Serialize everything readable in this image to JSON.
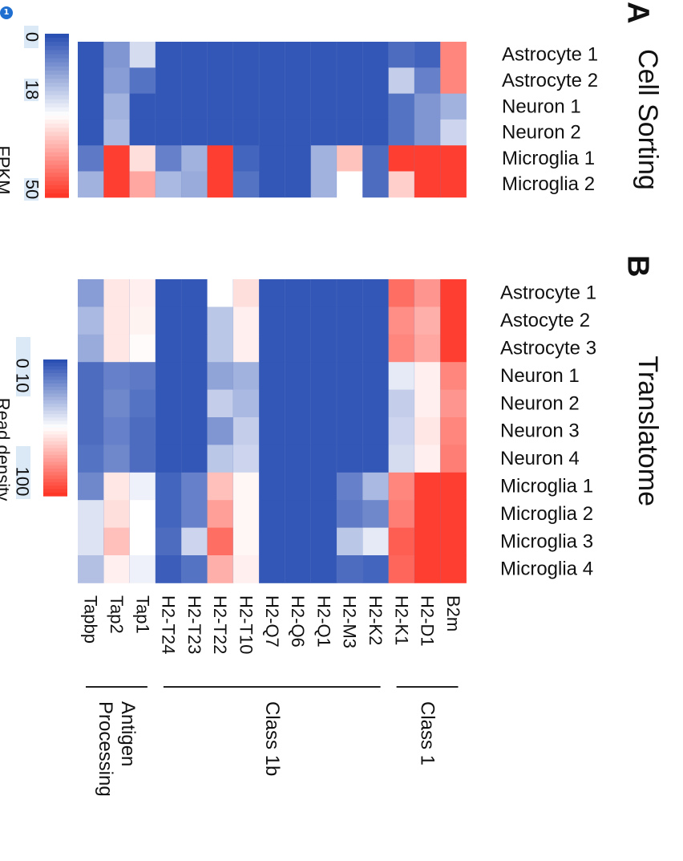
{
  "badge": "1",
  "colors": {
    "low": "#2b50b4",
    "mid": "#ffffff",
    "high": "#fe3627"
  },
  "genes": [
    "Tapbp",
    "Tap2",
    "Tap1",
    "H2-T24",
    "H2-T23",
    "H2-T22",
    "H2-T10",
    "H2-Q7",
    "H2-Q6",
    "H2-Q1",
    "H2-M3",
    "H2-K2",
    "H2-K1",
    "H2-D1",
    "B2m"
  ],
  "gene_groups": [
    {
      "label": "Antigen Processing",
      "lines": [
        "Antigen",
        "Processing"
      ]
    },
    {
      "label": "Class 1b",
      "lines": [
        "Class 1b"
      ]
    },
    {
      "label": "Class 1",
      "lines": [
        "Class 1"
      ]
    }
  ],
  "chart_data": [
    {
      "type": "heatmap",
      "panel": "A",
      "title": "Cell Sorting",
      "colorbar": {
        "label": "FPKM",
        "ticks": [
          "0",
          "18",
          "50"
        ]
      },
      "rows": [
        "Astrocyte 1",
        "Astrocyte 2",
        "Neuron 1",
        "Neuron 2",
        "Microglia 1",
        "Microglia 2"
      ],
      "columns": [
        "Tapbp",
        "Tap2",
        "Tap1",
        "H2-T24",
        "H2-T23",
        "H2-T22",
        "H2-T10",
        "H2-Q7",
        "H2-Q6",
        "H2-Q1",
        "H2-M3",
        "H2-K2",
        "H2-K1",
        "H2-D1",
        "B2m"
      ],
      "values": [
        [
          0.02,
          0.2,
          0.4,
          0.02,
          0.02,
          0.02,
          0.02,
          0.02,
          0.02,
          0.02,
          0.02,
          0.02,
          0.08,
          0.05,
          0.8
        ],
        [
          0.02,
          0.22,
          0.1,
          0.02,
          0.02,
          0.02,
          0.02,
          0.02,
          0.02,
          0.02,
          0.02,
          0.02,
          0.36,
          0.14,
          0.8
        ],
        [
          0.02,
          0.28,
          0.02,
          0.02,
          0.02,
          0.02,
          0.02,
          0.02,
          0.02,
          0.02,
          0.02,
          0.02,
          0.1,
          0.2,
          0.28
        ],
        [
          0.02,
          0.3,
          0.02,
          0.02,
          0.02,
          0.02,
          0.02,
          0.02,
          0.02,
          0.02,
          0.02,
          0.02,
          0.1,
          0.2,
          0.38
        ],
        [
          0.12,
          0.98,
          0.58,
          0.14,
          0.28,
          0.98,
          0.06,
          0.02,
          0.02,
          0.28,
          0.65,
          0.08,
          0.98,
          0.98,
          0.98
        ],
        [
          0.28,
          0.98,
          0.72,
          0.3,
          0.26,
          0.98,
          0.1,
          0.02,
          0.02,
          0.28,
          0.5,
          0.08,
          0.62,
          0.98,
          0.98
        ]
      ]
    },
    {
      "type": "heatmap",
      "panel": "B",
      "title": "Translatome",
      "colorbar": {
        "label": "Read density",
        "ticks": [
          "0",
          "10",
          "100"
        ]
      },
      "rows": [
        "Astrocyte 1",
        "Astocyte 2",
        "Astrocyte 3",
        "Neuron 1",
        "Neuron 2",
        "Neuron 3",
        "Neuron 4",
        "Microglia 1",
        "Microglia 2",
        "Microglia 3",
        "Microglia 4"
      ],
      "columns": [
        "Tapbp",
        "Tap2",
        "Tap1",
        "H2-T24",
        "H2-T23",
        "H2-T22",
        "H2-T10",
        "H2-Q7",
        "H2-Q6",
        "H2-Q1",
        "H2-M3",
        "H2-K2",
        "H2-K1",
        "H2-D1",
        "B2m"
      ],
      "values": [
        [
          0.22,
          0.56,
          0.54,
          0.02,
          0.02,
          0.5,
          0.58,
          0.02,
          0.02,
          0.02,
          0.02,
          0.02,
          0.86,
          0.76,
          0.98
        ],
        [
          0.3,
          0.56,
          0.53,
          0.02,
          0.02,
          0.34,
          0.54,
          0.02,
          0.02,
          0.02,
          0.02,
          0.02,
          0.78,
          0.7,
          0.98
        ],
        [
          0.26,
          0.56,
          0.51,
          0.02,
          0.02,
          0.34,
          0.54,
          0.02,
          0.02,
          0.02,
          0.02,
          0.02,
          0.8,
          0.72,
          0.98
        ],
        [
          0.08,
          0.14,
          0.12,
          0.02,
          0.02,
          0.24,
          0.28,
          0.02,
          0.02,
          0.02,
          0.02,
          0.02,
          0.44,
          0.54,
          0.8
        ],
        [
          0.08,
          0.16,
          0.1,
          0.02,
          0.02,
          0.36,
          0.3,
          0.02,
          0.02,
          0.02,
          0.02,
          0.02,
          0.36,
          0.54,
          0.76
        ],
        [
          0.08,
          0.14,
          0.08,
          0.02,
          0.02,
          0.2,
          0.36,
          0.02,
          0.02,
          0.02,
          0.02,
          0.02,
          0.38,
          0.56,
          0.8
        ],
        [
          0.1,
          0.16,
          0.08,
          0.02,
          0.02,
          0.34,
          0.38,
          0.02,
          0.02,
          0.02,
          0.02,
          0.02,
          0.4,
          0.54,
          0.82
        ],
        [
          0.16,
          0.56,
          0.46,
          0.06,
          0.14,
          0.66,
          0.52,
          0.02,
          0.02,
          0.02,
          0.14,
          0.3,
          0.8,
          0.98,
          0.98
        ],
        [
          0.42,
          0.58,
          0.5,
          0.06,
          0.14,
          0.74,
          0.52,
          0.02,
          0.02,
          0.02,
          0.12,
          0.16,
          0.82,
          0.98,
          0.98
        ],
        [
          0.42,
          0.66,
          0.5,
          0.08,
          0.38,
          0.86,
          0.52,
          0.02,
          0.02,
          0.02,
          0.34,
          0.44,
          0.9,
          0.98,
          0.98
        ],
        [
          0.32,
          0.54,
          0.46,
          0.04,
          0.1,
          0.7,
          0.54,
          0.02,
          0.02,
          0.02,
          0.08,
          0.06,
          0.88,
          0.98,
          0.98
        ]
      ]
    }
  ]
}
